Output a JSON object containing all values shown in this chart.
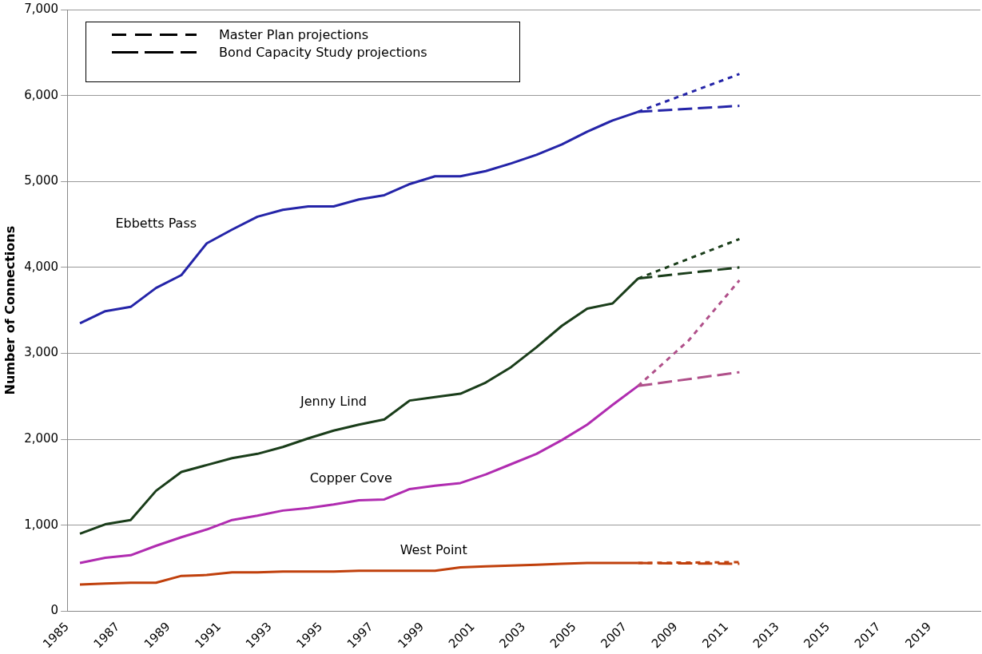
{
  "chart_data": {
    "type": "line",
    "ylabel": "Number of Connections",
    "xlim": [
      1985,
      2021
    ],
    "xticks": [
      1985,
      1987,
      1989,
      1991,
      1993,
      1995,
      1997,
      1999,
      2001,
      2003,
      2005,
      2007,
      2009,
      2011,
      2013,
      2015,
      2017,
      2019
    ],
    "ylim": [
      0,
      7000
    ],
    "yticks": [
      {
        "value": 0,
        "label": "0"
      },
      {
        "value": 1000,
        "label": "1,000"
      },
      {
        "value": 2000,
        "label": "2,000"
      },
      {
        "value": 3000,
        "label": "3,000"
      },
      {
        "value": 4000,
        "label": "4,000"
      },
      {
        "value": 5000,
        "label": "5,000"
      },
      {
        "value": 6000,
        "label": "6,000"
      },
      {
        "value": 7000,
        "label": "7,000"
      }
    ],
    "grid": "y",
    "legend": false,
    "marker": "none",
    "annotations": [
      "Master Plan projections",
      "Bond Capacity Study projections"
    ],
    "x": [
      1985.5,
      1986.5,
      1987.5,
      1988.5,
      1989.5,
      1990.5,
      1991.5,
      1992.5,
      1993.5,
      1994.5,
      1995.5,
      1996.5,
      1997.5,
      1998.5,
      1999.5,
      2000.5,
      2001.5,
      2002.5,
      2003.5,
      2004.5,
      2005.5,
      2006.5,
      2007.5
    ],
    "series": [
      {
        "name": "Ebbetts Pass",
        "color": "#2424a8",
        "line_style": "solid",
        "values": [
          3350,
          3490,
          3540,
          3760,
          3910,
          4280,
          4440,
          4590,
          4670,
          4710,
          4710,
          4790,
          4840,
          4970,
          5060,
          5060,
          5120,
          5210,
          5310,
          5430,
          5580,
          5710,
          5810
        ]
      },
      {
        "name": "Jenny Lind",
        "color": "#1a3d1a",
        "line_style": "solid",
        "values": [
          900,
          1010,
          1060,
          1400,
          1620,
          1700,
          1780,
          1830,
          1910,
          2010,
          2100,
          2170,
          2230,
          2450,
          2490,
          2530,
          2660,
          2840,
          3070,
          3320,
          3520,
          3580,
          3870
        ]
      },
      {
        "name": "Copper Cove",
        "color": "#b02cb0",
        "line_style": "solid",
        "values": [
          560,
          620,
          650,
          760,
          860,
          950,
          1060,
          1110,
          1170,
          1200,
          1240,
          1290,
          1300,
          1420,
          1460,
          1490,
          1590,
          1710,
          1830,
          1990,
          2170,
          2400,
          2620
        ]
      },
      {
        "name": "West Point",
        "color": "#c0400c",
        "line_style": "solid",
        "values": [
          310,
          320,
          330,
          330,
          410,
          420,
          450,
          450,
          460,
          460,
          460,
          470,
          470,
          470,
          470,
          510,
          520,
          530,
          540,
          550,
          560,
          560,
          560
        ]
      },
      {
        "color": "#2424a8",
        "line_style": "dotted",
        "x": [
          2007.5,
          2009.5,
          2011.5
        ],
        "values": [
          5810,
          6030,
          6250
        ]
      },
      {
        "color": "#2424a8",
        "line_style": "dashed",
        "x": [
          2007.5,
          2011.5
        ],
        "values": [
          5810,
          5880
        ]
      },
      {
        "color": "#1a3d1a",
        "line_style": "dotted",
        "x": [
          2007.5,
          2009.5,
          2011.5
        ],
        "values": [
          3870,
          4100,
          4330
        ]
      },
      {
        "color": "#1a3d1a",
        "line_style": "dashed",
        "x": [
          2007.5,
          2011.5
        ],
        "values": [
          3870,
          4000
        ]
      },
      {
        "color": "#b0508a",
        "line_style": "dotted",
        "x": [
          2007.5,
          2009.5,
          2011.5
        ],
        "values": [
          2620,
          3150,
          3850
        ]
      },
      {
        "color": "#b0508a",
        "line_style": "dashed",
        "x": [
          2007.5,
          2011.5
        ],
        "values": [
          2620,
          2780
        ]
      },
      {
        "color": "#c0400c",
        "line_style": "dotted",
        "x": [
          2007.5,
          2011.5
        ],
        "values": [
          560,
          570
        ]
      },
      {
        "color": "#c0400c",
        "line_style": "dashed",
        "x": [
          2007.5,
          2011.5
        ],
        "values": [
          560,
          550
        ]
      }
    ]
  }
}
